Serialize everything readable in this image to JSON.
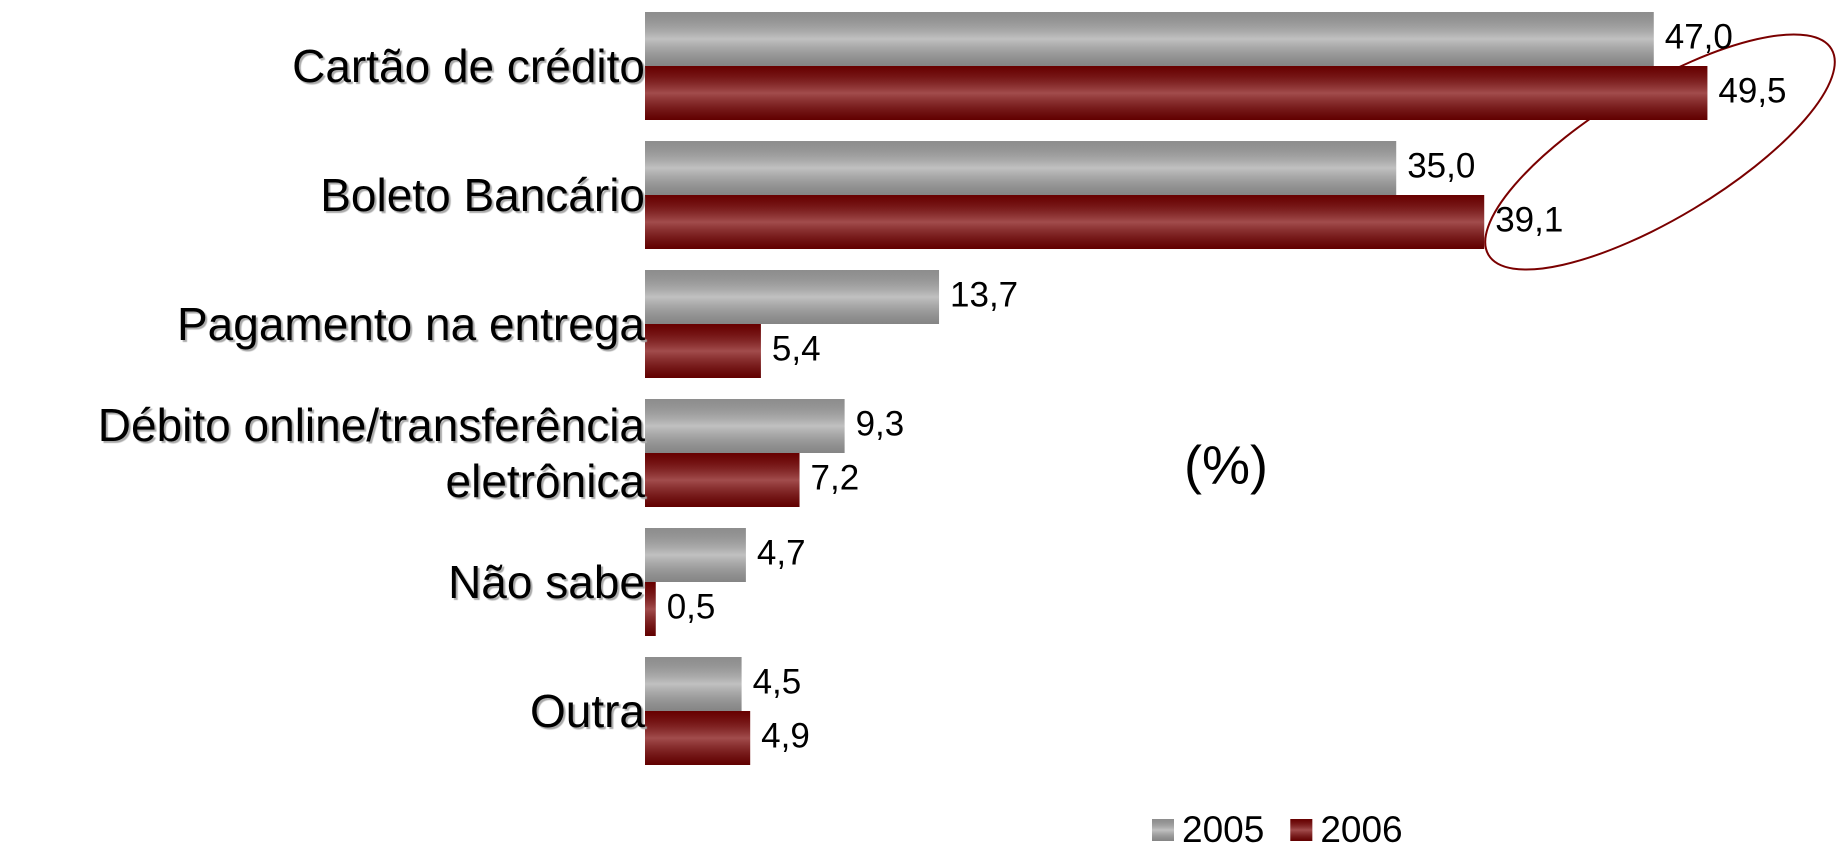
{
  "chart_data": {
    "type": "bar",
    "orientation": "horizontal",
    "annotation": "(%)",
    "categories": [
      "Cartão de crédito",
      "Boleto Bancário",
      "Pagamento na entrega",
      "Débito online/transferência\neletrônica",
      "Não sabe",
      "Outra"
    ],
    "series": [
      {
        "name": "2005",
        "color": "#a6a6a6",
        "values": [
          47.0,
          35.0,
          13.7,
          9.3,
          4.7,
          4.5
        ],
        "value_labels": [
          "47,0",
          "35,0",
          "13,7",
          "9,3",
          "4,7",
          "4,5"
        ]
      },
      {
        "name": "2006",
        "color": "#7a0000",
        "values": [
          49.5,
          39.1,
          5.4,
          7.2,
          0.5,
          4.9
        ],
        "value_labels": [
          "49,5",
          "39,1",
          "5,4",
          "7,2",
          "0,5",
          "4,9"
        ]
      }
    ],
    "legend": "bottom"
  }
}
